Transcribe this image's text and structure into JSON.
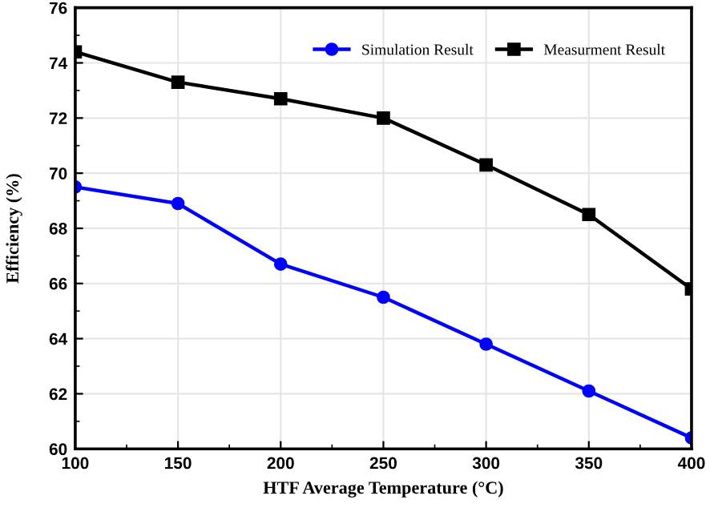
{
  "chart_data": {
    "type": "line",
    "xlabel": "HTF Average Temperature (°C)",
    "ylabel": "Efficiency (%)",
    "x": [
      100,
      150,
      200,
      250,
      300,
      350,
      400
    ],
    "series": [
      {
        "name": "Simulation Result",
        "color": "#0000ff",
        "marker": "circle",
        "values": [
          69.5,
          68.9,
          66.7,
          65.5,
          63.8,
          62.1,
          60.4
        ]
      },
      {
        "name": "Measurment Result",
        "color": "#000000",
        "marker": "square",
        "values": [
          74.4,
          73.3,
          72.7,
          72.0,
          70.3,
          68.5,
          65.8
        ]
      }
    ],
    "xlim": [
      100,
      400
    ],
    "xticks": [
      100,
      150,
      200,
      250,
      300,
      350,
      400
    ],
    "ylim": [
      60,
      76
    ],
    "yticks": [
      60,
      62,
      64,
      66,
      68,
      70,
      72,
      74,
      76
    ],
    "grid": true,
    "legend": "top right",
    "line_style": "solid"
  }
}
